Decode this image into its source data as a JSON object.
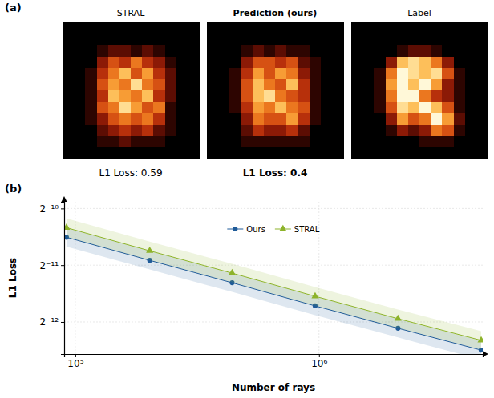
{
  "chart_data": [
    {
      "type": "heatmap",
      "panel": "(a)",
      "title": "STRAL",
      "annotation": "L1 Loss: 0.59",
      "zlim": [
        0,
        1
      ],
      "cells": [
        [
          0,
          0,
          0,
          0,
          0,
          0,
          0,
          0,
          0,
          0,
          0,
          0
        ],
        [
          0,
          0,
          0,
          0,
          0,
          0,
          0,
          0,
          0,
          0,
          0,
          0
        ],
        [
          0,
          0,
          0,
          0.1,
          0.2,
          0.2,
          0.1,
          0.2,
          0.1,
          0,
          0,
          0
        ],
        [
          0,
          0,
          0,
          0.3,
          0.5,
          0.4,
          0.6,
          0.4,
          0.3,
          0.1,
          0,
          0
        ],
        [
          0,
          0,
          0.1,
          0.4,
          0.6,
          0.8,
          0.5,
          0.7,
          0.4,
          0.2,
          0,
          0
        ],
        [
          0,
          0,
          0.1,
          0.5,
          0.7,
          0.6,
          0.9,
          0.6,
          0.5,
          0.2,
          0,
          0
        ],
        [
          0,
          0,
          0.1,
          0.4,
          0.8,
          0.7,
          0.6,
          0.8,
          0.4,
          0.2,
          0,
          0
        ],
        [
          0,
          0,
          0.1,
          0.5,
          0.6,
          0.9,
          0.7,
          0.5,
          0.6,
          0.1,
          0,
          0
        ],
        [
          0,
          0,
          0.1,
          0.3,
          0.5,
          0.6,
          0.5,
          0.6,
          0.4,
          0.1,
          0,
          0
        ],
        [
          0,
          0,
          0,
          0.2,
          0.3,
          0.4,
          0.3,
          0.4,
          0.2,
          0.1,
          0,
          0
        ],
        [
          0,
          0,
          0,
          0.1,
          0.1,
          0.2,
          0.1,
          0.1,
          0.1,
          0,
          0,
          0
        ],
        [
          0,
          0,
          0,
          0,
          0,
          0,
          0,
          0,
          0,
          0,
          0,
          0
        ]
      ]
    },
    {
      "type": "heatmap",
      "title": "Prediction (ours)",
      "annotation": "L1 Loss: 0.4",
      "zlim": [
        0,
        1
      ],
      "cells": [
        [
          0,
          0,
          0,
          0,
          0,
          0,
          0,
          0,
          0,
          0,
          0,
          0
        ],
        [
          0,
          0,
          0,
          0,
          0,
          0,
          0,
          0,
          0,
          0,
          0,
          0
        ],
        [
          0,
          0,
          0,
          0.1,
          0.2,
          0.1,
          0.2,
          0.1,
          0.1,
          0,
          0,
          0
        ],
        [
          0,
          0,
          0,
          0.3,
          0.5,
          0.5,
          0.4,
          0.5,
          0.2,
          0.1,
          0,
          0
        ],
        [
          0,
          0,
          0.1,
          0.4,
          0.7,
          0.5,
          0.7,
          0.6,
          0.3,
          0.1,
          0,
          0
        ],
        [
          0,
          0,
          0.1,
          0.5,
          0.8,
          0.6,
          0.5,
          0.8,
          0.4,
          0.1,
          0,
          0
        ],
        [
          0,
          0,
          0.1,
          0.5,
          0.8,
          0.9,
          0.6,
          0.5,
          0.4,
          0.1,
          0,
          0
        ],
        [
          0,
          0,
          0.1,
          0.4,
          0.7,
          0.6,
          0.8,
          0.6,
          0.5,
          0.1,
          0,
          0
        ],
        [
          0,
          0,
          0,
          0.3,
          0.6,
          0.5,
          0.5,
          0.7,
          0.4,
          0.1,
          0,
          0
        ],
        [
          0,
          0,
          0,
          0.2,
          0.4,
          0.3,
          0.3,
          0.4,
          0.2,
          0,
          0,
          0
        ],
        [
          0,
          0,
          0,
          0.1,
          0.1,
          0.1,
          0.1,
          0.1,
          0.1,
          0,
          0,
          0
        ],
        [
          0,
          0,
          0,
          0,
          0,
          0,
          0,
          0,
          0,
          0,
          0,
          0
        ]
      ]
    },
    {
      "type": "heatmap",
      "title": "Label",
      "zlim": [
        0,
        1
      ],
      "cells": [
        [
          0,
          0,
          0,
          0,
          0,
          0,
          0,
          0,
          0,
          0,
          0,
          0
        ],
        [
          0,
          0,
          0,
          0,
          0,
          0,
          0,
          0,
          0,
          0,
          0,
          0
        ],
        [
          0,
          0,
          0,
          0,
          0.1,
          0.2,
          0.2,
          0.1,
          0,
          0,
          0,
          0
        ],
        [
          0,
          0,
          0,
          0.3,
          0.8,
          0.9,
          0.8,
          0.6,
          0.3,
          0,
          0,
          0
        ],
        [
          0,
          0,
          0.1,
          0.6,
          1,
          0.9,
          0.8,
          0.9,
          0.5,
          0.1,
          0,
          0
        ],
        [
          0,
          0,
          0.1,
          0.7,
          1,
          0.8,
          1,
          0.7,
          0.3,
          0.1,
          0,
          0
        ],
        [
          0,
          0,
          0.1,
          0.6,
          1,
          1,
          0.6,
          0.4,
          0.3,
          0.1,
          0,
          0
        ],
        [
          0,
          0,
          0.1,
          0.5,
          0.9,
          0.8,
          1,
          0.8,
          0.5,
          0.1,
          0,
          0
        ],
        [
          0,
          0,
          0,
          0.3,
          0.7,
          0.5,
          0.6,
          1,
          0.7,
          0.2,
          0,
          0
        ],
        [
          0,
          0,
          0,
          0.1,
          0.3,
          0.2,
          0.3,
          0.6,
          0.5,
          0.1,
          0,
          0
        ],
        [
          0,
          0,
          0,
          0,
          0,
          0,
          0.1,
          0.1,
          0.1,
          0,
          0,
          0
        ],
        [
          0,
          0,
          0,
          0,
          0,
          0,
          0,
          0,
          0,
          0,
          0,
          0
        ]
      ]
    },
    {
      "type": "line",
      "panel": "(b)",
      "xlabel": "Number of rays",
      "ylabel": "L1 Loss",
      "log": true,
      "grid": true,
      "legend": "top",
      "x": [
        92000,
        202000,
        440000,
        964000,
        2110000,
        4630000
      ],
      "xlim": [
        90000,
        4700000
      ],
      "xticks": [
        {
          "value": 100000,
          "label": "10⁵"
        },
        {
          "value": 1000000,
          "label": "10⁶"
        }
      ],
      "ylim": [
        0.000165,
        0.00106
      ],
      "yticks": [
        {
          "value": 0.0009765625,
          "label": "2⁻¹⁰"
        },
        {
          "value": 0.00048828125,
          "label": "2⁻¹¹"
        },
        {
          "value": 0.000244140625,
          "label": "2⁻¹²"
        }
      ],
      "series": [
        {
          "name": "Ours",
          "color": "#1f5b99",
          "marker": "circle",
          "values": [
            0.000687,
            0.000518,
            0.000394,
            0.000297,
            0.000226,
            0.000173
          ],
          "lower": [
            0.000613,
            0.000463,
            0.000352,
            0.000265,
            0.000202,
            0.000154
          ],
          "upper": [
            0.000769,
            0.00058,
            0.000441,
            0.000333,
            0.000253,
            0.000194
          ]
        },
        {
          "name": "STRAL",
          "color": "#8db32a",
          "marker": "triangle",
          "values": [
            0.000772,
            0.000582,
            0.000443,
            0.000334,
            0.000254,
            0.000195
          ],
          "lower": [
            0.000689,
            0.00052,
            0.000396,
            0.000298,
            0.000227,
            0.000174
          ],
          "upper": [
            0.000865,
            0.000652,
            0.000496,
            0.000374,
            0.000284,
            0.000218
          ]
        }
      ]
    }
  ]
}
